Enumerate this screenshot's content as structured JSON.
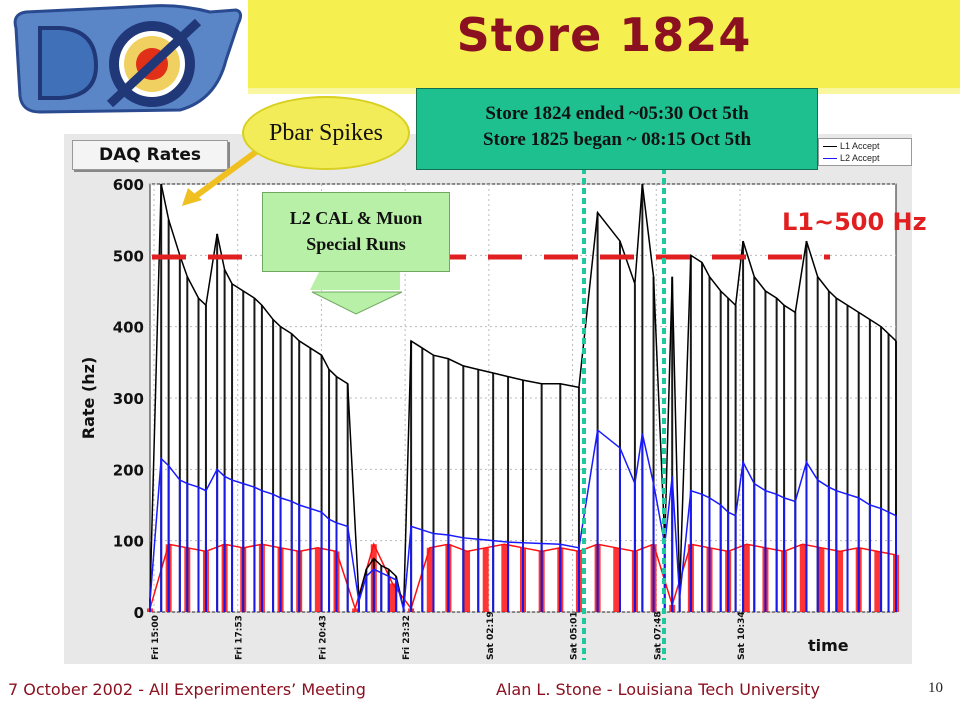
{
  "slide": {
    "title": "Store 1824",
    "footer_left": "7 October 2002  - All Experimenters’ Meeting",
    "footer_center": "Alan L. Stone  -  Louisiana Tech University",
    "page_number": "10",
    "logo_text": "DØ"
  },
  "callouts": {
    "pbar": "Pbar Spikes",
    "store_line1": "Store 1824 ended ~05:30 Oct 5th",
    "store_line2": "Store 1825 began ~ 08:15 Oct 5th",
    "l2_line1": "L2 CAL & Muon",
    "l2_line2": "Special Runs",
    "l1_label": "L1~500 Hz"
  },
  "colors": {
    "title_bar": "#f5f050",
    "title_text": "#8b1020",
    "l1_series": "#000000",
    "l2_series": "#1a1aff",
    "l3_series": "#ff1010",
    "threshold": "#e02020",
    "store_markers": "#20c8a0"
  },
  "chart_data": {
    "type": "line",
    "tab_label": "DAQ Rates",
    "ylabel": "Rate (hz)",
    "xlabel": "time",
    "ylim": [
      0,
      600
    ],
    "yticks": [
      0,
      100,
      200,
      300,
      400,
      500,
      600
    ],
    "ytick_labels": [
      "0",
      "100",
      "200",
      "300",
      "400",
      "500",
      "600"
    ],
    "xticks": [
      "Fri 15:00",
      "Fri 17:53",
      "Fri 20:43",
      "Fri 23:32",
      "Sat 02:19",
      "Sat 05:01",
      "Sat 07:48",
      "Sat 10:34"
    ],
    "grid": true,
    "legend_position": "top-right",
    "threshold": {
      "value": 500,
      "label": "L1~500 Hz"
    },
    "store_markers": [
      "Sat 05:30",
      "Sat 08:15"
    ],
    "series": [
      {
        "name": "L1 Accept",
        "color": "#000000",
        "x": [
          0.0,
          0.3,
          0.5,
          0.8,
          1.0,
          1.3,
          1.5,
          1.8,
          2.0,
          2.2,
          2.5,
          2.8,
          3.0,
          3.3,
          3.5,
          3.8,
          4.0,
          4.3,
          4.6,
          4.8,
          5.0,
          5.3,
          5.6,
          5.8,
          6.0,
          6.2,
          6.4,
          6.6,
          6.8,
          7.0,
          7.3,
          7.6,
          8.0,
          8.4,
          8.8,
          9.2,
          9.6,
          10.0,
          10.5,
          11.0,
          11.5,
          12.0,
          12.6,
          13.0,
          13.2,
          13.5,
          13.8,
          14.0,
          14.2,
          14.5,
          14.8,
          15.0,
          15.3,
          15.5,
          15.7,
          15.9,
          16.2,
          16.5,
          16.8,
          17.0,
          17.3,
          17.6,
          17.9,
          18.2,
          18.4,
          18.7,
          19.0,
          19.3,
          19.6,
          19.8,
          20.0
        ],
        "y": [
          20,
          600,
          550,
          500,
          470,
          440,
          430,
          530,
          480,
          460,
          450,
          440,
          430,
          410,
          400,
          390,
          380,
          370,
          360,
          340,
          330,
          320,
          20,
          60,
          75,
          65,
          60,
          50,
          5,
          380,
          370,
          360,
          355,
          345,
          340,
          335,
          330,
          325,
          320,
          320,
          315,
          560,
          520,
          460,
          600,
          470,
          100,
          470,
          30,
          500,
          490,
          470,
          450,
          440,
          430,
          520,
          470,
          450,
          440,
          430,
          420,
          520,
          470,
          450,
          440,
          430,
          420,
          410,
          400,
          390,
          380
        ]
      },
      {
        "name": "L2 Accept",
        "color": "#1a1aff",
        "x": [
          0.0,
          0.3,
          0.5,
          0.8,
          1.0,
          1.3,
          1.5,
          1.8,
          2.0,
          2.2,
          2.5,
          2.8,
          3.0,
          3.3,
          3.5,
          3.8,
          4.0,
          4.3,
          4.6,
          4.8,
          5.0,
          5.3,
          5.6,
          5.8,
          6.0,
          6.2,
          6.4,
          6.6,
          6.8,
          7.0,
          7.3,
          7.6,
          8.0,
          8.4,
          8.8,
          9.2,
          9.6,
          10.0,
          10.5,
          11.0,
          11.5,
          12.0,
          12.6,
          13.0,
          13.2,
          13.5,
          13.8,
          14.0,
          14.2,
          14.5,
          14.8,
          15.0,
          15.3,
          15.5,
          15.7,
          15.9,
          16.2,
          16.5,
          16.8,
          17.0,
          17.3,
          17.6,
          17.9,
          18.2,
          18.4,
          18.7,
          19.0,
          19.3,
          19.6,
          19.8,
          20.0
        ],
        "y": [
          15,
          215,
          205,
          185,
          180,
          175,
          170,
          200,
          190,
          185,
          180,
          175,
          170,
          165,
          160,
          155,
          150,
          145,
          140,
          130,
          125,
          120,
          15,
          50,
          60,
          55,
          50,
          45,
          3,
          120,
          115,
          110,
          108,
          104,
          102,
          100,
          98,
          97,
          96,
          95,
          90,
          255,
          230,
          180,
          250,
          180,
          95,
          190,
          20,
          170,
          165,
          160,
          150,
          140,
          135,
          210,
          180,
          170,
          165,
          160,
          155,
          210,
          185,
          175,
          170,
          165,
          160,
          150,
          145,
          140,
          135
        ]
      },
      {
        "name": "",
        "color": "#ff1010",
        "x": [
          0.0,
          0.5,
          1.0,
          1.5,
          2.0,
          2.5,
          3.0,
          3.5,
          4.0,
          4.5,
          5.0,
          5.5,
          6.0,
          6.5,
          7.0,
          7.5,
          8.0,
          8.5,
          9.0,
          9.5,
          10.0,
          10.5,
          11.0,
          11.5,
          12.0,
          12.5,
          13.0,
          13.5,
          14.0,
          14.5,
          15.0,
          15.5,
          16.0,
          16.5,
          17.0,
          17.5,
          18.0,
          18.5,
          19.0,
          19.5,
          20.0
        ],
        "y": [
          5,
          95,
          90,
          85,
          95,
          90,
          95,
          90,
          85,
          90,
          85,
          5,
          95,
          40,
          5,
          90,
          95,
          85,
          90,
          95,
          90,
          85,
          90,
          85,
          95,
          90,
          85,
          95,
          10,
          95,
          90,
          85,
          95,
          90,
          85,
          95,
          90,
          85,
          90,
          85,
          80
        ]
      }
    ]
  }
}
